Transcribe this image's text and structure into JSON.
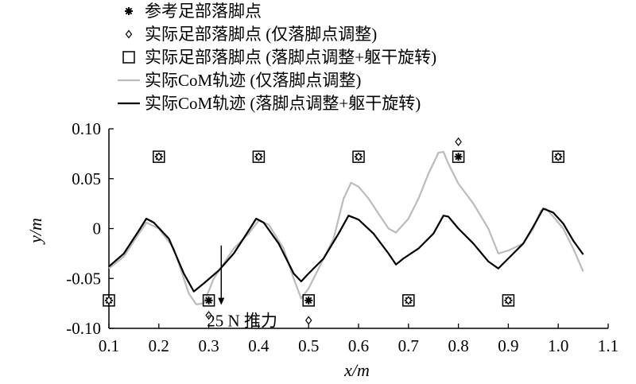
{
  "chart_data": {
    "type": "line",
    "title": "",
    "xlabel": "x/m",
    "ylabel": "y/m",
    "xlim": [
      0.1,
      1.1
    ],
    "ylim": [
      -0.1,
      0.1
    ],
    "xticks": [
      "0.1",
      "0.2",
      "0.3",
      "0.4",
      "0.5",
      "0.6",
      "0.7",
      "0.8",
      "0.9",
      "1.0",
      "1.1"
    ],
    "yticks": [
      "-0.10",
      "-0.05",
      "0",
      "0.05",
      "0.10"
    ],
    "grid": false,
    "legend_position": "top-left",
    "legend": [
      {
        "label": "参考足部落脚点",
        "marker": "asterisk"
      },
      {
        "label": "实际足部落脚点 (仅落脚点调整)",
        "marker": "diamond"
      },
      {
        "label": "实际足部落脚点 (落脚点调整+躯干旋转)",
        "marker": "square"
      },
      {
        "label": "实际CoM轨迹 (仅落脚点调整)",
        "line_color": "#bbbbbb"
      },
      {
        "label": "实际CoM轨迹 (落脚点调整+躯干旋转)",
        "line_color": "#000000"
      }
    ],
    "annotation": {
      "text": "25 N 推力",
      "x": 0.325,
      "y_from": -0.017,
      "y_to": -0.075
    },
    "series": [
      {
        "name": "参考足部落脚点",
        "kind": "marker",
        "marker": "asterisk",
        "points": [
          [
            0.1,
            -0.072
          ],
          [
            0.2,
            0.072
          ],
          [
            0.3,
            -0.072
          ],
          [
            0.4,
            0.072
          ],
          [
            0.5,
            -0.072
          ],
          [
            0.6,
            0.072
          ],
          [
            0.7,
            -0.072
          ],
          [
            0.8,
            0.072
          ],
          [
            0.9,
            -0.072
          ],
          [
            1.0,
            0.072
          ]
        ]
      },
      {
        "name": "实际足部落脚点 (仅落脚点调整)",
        "kind": "marker",
        "marker": "diamond",
        "points": [
          [
            0.1,
            -0.072
          ],
          [
            0.2,
            0.072
          ],
          [
            0.3,
            -0.087
          ],
          [
            0.4,
            0.072
          ],
          [
            0.5,
            -0.092
          ],
          [
            0.6,
            0.072
          ],
          [
            0.7,
            -0.072
          ],
          [
            0.8,
            0.087
          ],
          [
            0.9,
            -0.072
          ],
          [
            1.0,
            0.072
          ]
        ]
      },
      {
        "name": "实际足部落脚点 (落脚点调整+躯干旋转)",
        "kind": "marker",
        "marker": "square",
        "points": [
          [
            0.1,
            -0.072
          ],
          [
            0.2,
            0.072
          ],
          [
            0.3,
            -0.072
          ],
          [
            0.4,
            0.072
          ],
          [
            0.5,
            -0.072
          ],
          [
            0.6,
            0.072
          ],
          [
            0.7,
            -0.072
          ],
          [
            0.8,
            0.072
          ],
          [
            0.9,
            -0.072
          ],
          [
            1.0,
            0.072
          ]
        ]
      },
      {
        "name": "实际CoM轨迹 (仅落脚点调整)",
        "kind": "line",
        "color": "#bbbbbb",
        "points": [
          [
            0.1,
            -0.04
          ],
          [
            0.13,
            -0.028
          ],
          [
            0.16,
            -0.005
          ],
          [
            0.175,
            0.006
          ],
          [
            0.2,
            0.0
          ],
          [
            0.23,
            -0.02
          ],
          [
            0.26,
            -0.065
          ],
          [
            0.275,
            -0.076
          ],
          [
            0.29,
            -0.075
          ],
          [
            0.31,
            -0.05
          ],
          [
            0.35,
            -0.02
          ],
          [
            0.38,
            -0.005
          ],
          [
            0.4,
            0.008
          ],
          [
            0.42,
            0.004
          ],
          [
            0.45,
            -0.02
          ],
          [
            0.47,
            -0.05
          ],
          [
            0.485,
            -0.07
          ],
          [
            0.5,
            -0.06
          ],
          [
            0.52,
            -0.04
          ],
          [
            0.55,
            -0.01
          ],
          [
            0.57,
            0.03
          ],
          [
            0.585,
            0.046
          ],
          [
            0.6,
            0.042
          ],
          [
            0.62,
            0.03
          ],
          [
            0.64,
            0.015
          ],
          [
            0.66,
            0.0
          ],
          [
            0.675,
            -0.004
          ],
          [
            0.7,
            0.01
          ],
          [
            0.72,
            0.03
          ],
          [
            0.74,
            0.055
          ],
          [
            0.76,
            0.076
          ],
          [
            0.77,
            0.077
          ],
          [
            0.78,
            0.065
          ],
          [
            0.8,
            0.045
          ],
          [
            0.83,
            0.025
          ],
          [
            0.86,
            0.0
          ],
          [
            0.88,
            -0.025
          ],
          [
            0.9,
            -0.022
          ],
          [
            0.93,
            -0.015
          ],
          [
            0.95,
            0.0
          ],
          [
            0.965,
            0.018
          ],
          [
            0.975,
            0.02
          ],
          [
            0.99,
            0.012
          ],
          [
            1.01,
            0.0
          ],
          [
            1.03,
            -0.02
          ],
          [
            1.05,
            -0.043
          ]
        ]
      },
      {
        "name": "实际CoM轨迹 (落脚点调整+躯干旋转)",
        "kind": "line",
        "color": "#000000",
        "points": [
          [
            0.1,
            -0.038
          ],
          [
            0.13,
            -0.025
          ],
          [
            0.16,
            -0.002
          ],
          [
            0.175,
            0.01
          ],
          [
            0.19,
            0.006
          ],
          [
            0.22,
            -0.01
          ],
          [
            0.25,
            -0.045
          ],
          [
            0.27,
            -0.063
          ],
          [
            0.29,
            -0.055
          ],
          [
            0.32,
            -0.042
          ],
          [
            0.35,
            -0.025
          ],
          [
            0.38,
            -0.002
          ],
          [
            0.395,
            0.01
          ],
          [
            0.41,
            0.006
          ],
          [
            0.44,
            -0.015
          ],
          [
            0.47,
            -0.045
          ],
          [
            0.485,
            -0.053
          ],
          [
            0.5,
            -0.045
          ],
          [
            0.53,
            -0.03
          ],
          [
            0.56,
            -0.005
          ],
          [
            0.58,
            0.013
          ],
          [
            0.6,
            0.009
          ],
          [
            0.63,
            -0.005
          ],
          [
            0.66,
            -0.025
          ],
          [
            0.675,
            -0.036
          ],
          [
            0.69,
            -0.03
          ],
          [
            0.72,
            -0.02
          ],
          [
            0.75,
            -0.005
          ],
          [
            0.77,
            0.013
          ],
          [
            0.78,
            0.012
          ],
          [
            0.8,
            0.0
          ],
          [
            0.83,
            -0.015
          ],
          [
            0.86,
            -0.033
          ],
          [
            0.88,
            -0.04
          ],
          [
            0.9,
            -0.03
          ],
          [
            0.93,
            -0.015
          ],
          [
            0.95,
            0.002
          ],
          [
            0.97,
            0.02
          ],
          [
            0.99,
            0.016
          ],
          [
            1.01,
            0.005
          ],
          [
            1.03,
            -0.012
          ],
          [
            1.05,
            -0.026
          ]
        ]
      }
    ]
  }
}
